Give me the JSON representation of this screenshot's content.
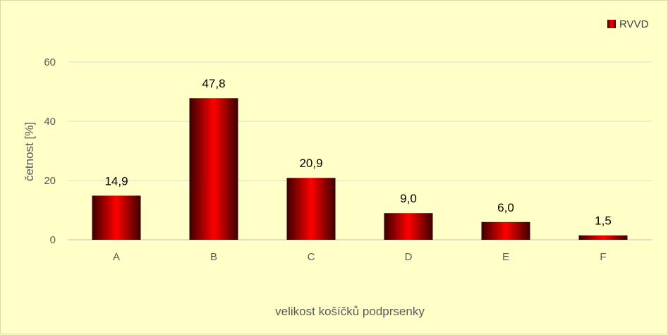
{
  "chart_data": {
    "type": "bar",
    "title": "",
    "xlabel": "velikost košíčků podprsenky",
    "ylabel": "četnost [%]",
    "categories": [
      "A",
      "B",
      "C",
      "D",
      "E",
      "F"
    ],
    "series": [
      {
        "name": "RVVD",
        "values": [
          14.9,
          47.8,
          20.9,
          9.0,
          6.0,
          1.5
        ],
        "labels": [
          "14,9",
          "47,8",
          "20,9",
          "9,0",
          "6,0",
          "1,5"
        ],
        "color": "#ff0000"
      }
    ],
    "ylim": [
      0,
      60
    ],
    "yticks": [
      "0",
      "20",
      "40",
      "60"
    ],
    "grid": true,
    "legend": "top-right",
    "background": "#ffffc8"
  }
}
